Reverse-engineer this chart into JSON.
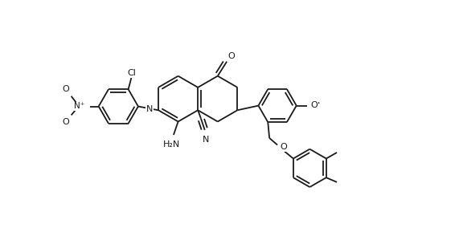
{
  "bg": "#ffffff",
  "lc": "#1a1a1a",
  "lw": 1.3,
  "dbo": 0.08,
  "fs": 8.0,
  "xlim": [
    -0.5,
    10.5
  ],
  "ylim": [
    -1.2,
    4.8
  ]
}
